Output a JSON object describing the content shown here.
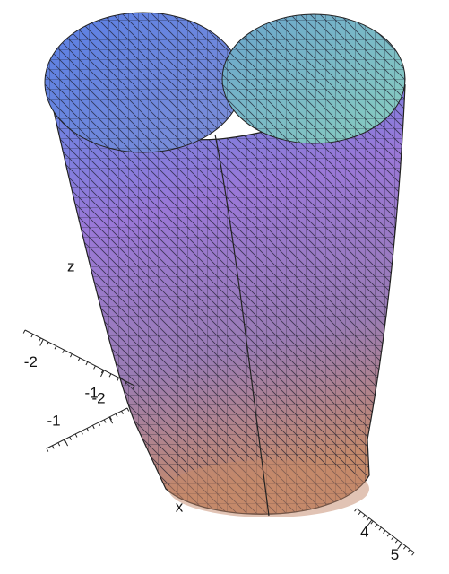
{
  "chart_data": {
    "type": "surface3d",
    "zlabel": "z",
    "axes": [
      {
        "ticks": [
          -2,
          -1
        ],
        "lim": [
          -2.3,
          -0.5
        ]
      },
      {
        "ticks": [
          -1,
          -2
        ],
        "lim": [
          -0.6,
          -2.4
        ]
      },
      {
        "label": "x",
        "ticks": [
          4,
          5
        ],
        "lim": [
          3.5,
          5.4
        ]
      }
    ]
  }
}
